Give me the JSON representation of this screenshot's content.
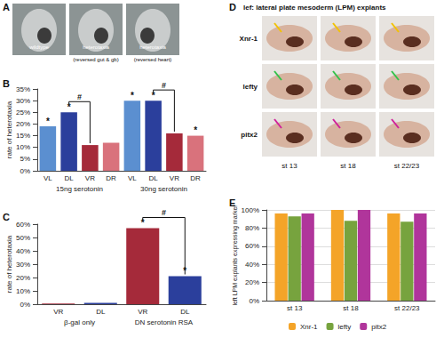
{
  "panel_labels": [
    "A",
    "B",
    "C",
    "D",
    "E"
  ],
  "panel_a": {
    "images": [
      {
        "caption": "wildtype"
      },
      {
        "caption": "heterotaxia",
        "subcaption": "(reversed gut & gb)"
      },
      {
        "caption": "heterotaxia",
        "subcaption": "(reversed heart)"
      }
    ]
  },
  "panel_d": {
    "title": "lef: lateral plate mesoderm (LPM) explants",
    "rows": [
      "Xnr-1",
      "lefty",
      "pitx2"
    ],
    "columns": [
      "st 13",
      "st 18",
      "st 22/23"
    ]
  },
  "chart_data": [
    {
      "type": "bar",
      "y_label": "rate of heterotaxia",
      "categories": [
        "VL",
        "DL",
        "VR",
        "DR",
        "VL",
        "DL",
        "VR",
        "DR"
      ],
      "groups": [
        "15ng serotonin",
        "30ng serotonin"
      ],
      "values": [
        19,
        25,
        11,
        12,
        30,
        30,
        16,
        15
      ],
      "colors": [
        "#5b8fd0",
        "#2b3f9c",
        "#a52a3a",
        "#d9727c",
        "#5b8fd0",
        "#2b3f9c",
        "#a52a3a",
        "#d9727c"
      ],
      "ylim": [
        0,
        35
      ],
      "yticks": [
        {
          "value": 0,
          "label": "0%"
        },
        {
          "value": 5,
          "label": "5%"
        },
        {
          "value": 10,
          "label": "10%"
        },
        {
          "value": 15,
          "label": "15%"
        },
        {
          "value": 20,
          "label": "20%"
        },
        {
          "value": 25,
          "label": "25%"
        },
        {
          "value": 30,
          "label": "30%"
        },
        {
          "value": 35,
          "label": "35%"
        }
      ],
      "grid": false,
      "annotations": [
        {
          "text": "*",
          "at": 0
        },
        {
          "text": "*",
          "at": 1
        },
        {
          "text": "#",
          "between": [
            1,
            2
          ]
        },
        {
          "text": "*",
          "at": 4
        },
        {
          "text": "*",
          "at": 5
        },
        {
          "text": "#",
          "between": [
            5,
            6
          ]
        },
        {
          "text": "*",
          "at": 7
        }
      ]
    },
    {
      "type": "bar",
      "y_label": "rate of heterotaxia",
      "categories": [
        "VR",
        "DL",
        "VR",
        "DL"
      ],
      "groups": [
        "β-gal only",
        "DN serotonin RSA"
      ],
      "values": [
        0.5,
        1,
        57,
        21
      ],
      "colors": [
        "#a52a3a",
        "#2b3f9c",
        "#a52a3a",
        "#2b3f9c"
      ],
      "ylim": [
        0,
        60
      ],
      "yticks": [
        {
          "value": 0,
          "label": "0%"
        },
        {
          "value": 10,
          "label": "10%"
        },
        {
          "value": 20,
          "label": "20%"
        },
        {
          "value": 30,
          "label": "30%"
        },
        {
          "value": 40,
          "label": "40%"
        },
        {
          "value": 50,
          "label": "50%"
        },
        {
          "value": 60,
          "label": "60%"
        }
      ],
      "grid": false,
      "annotations": [
        {
          "text": "*",
          "at": 2
        },
        {
          "text": "*",
          "at": 3
        },
        {
          "text": "#",
          "between": [
            2,
            3
          ]
        }
      ]
    },
    {
      "type": "bar",
      "y_label": "left LPM explants expressing marker",
      "categories": [
        "st 13",
        "st 18",
        "st 22/23"
      ],
      "series": [
        {
          "name": "Xnr-1",
          "color": "#f4a428",
          "values": [
            96,
            100,
            96
          ]
        },
        {
          "name": "lefty",
          "color": "#77a33e",
          "values": [
            93,
            88,
            87
          ]
        },
        {
          "name": "pitx2",
          "color": "#b0359b",
          "values": [
            96,
            100,
            96
          ]
        }
      ],
      "ylim": [
        0,
        100
      ],
      "yticks": [
        {
          "value": 0,
          "label": "0%"
        },
        {
          "value": 20,
          "label": "20%"
        },
        {
          "value": 40,
          "label": "40%"
        },
        {
          "value": 60,
          "label": "60%"
        },
        {
          "value": 80,
          "label": "80%"
        },
        {
          "value": 100,
          "label": "100%"
        }
      ],
      "grid": true,
      "legend": "bottom"
    }
  ]
}
